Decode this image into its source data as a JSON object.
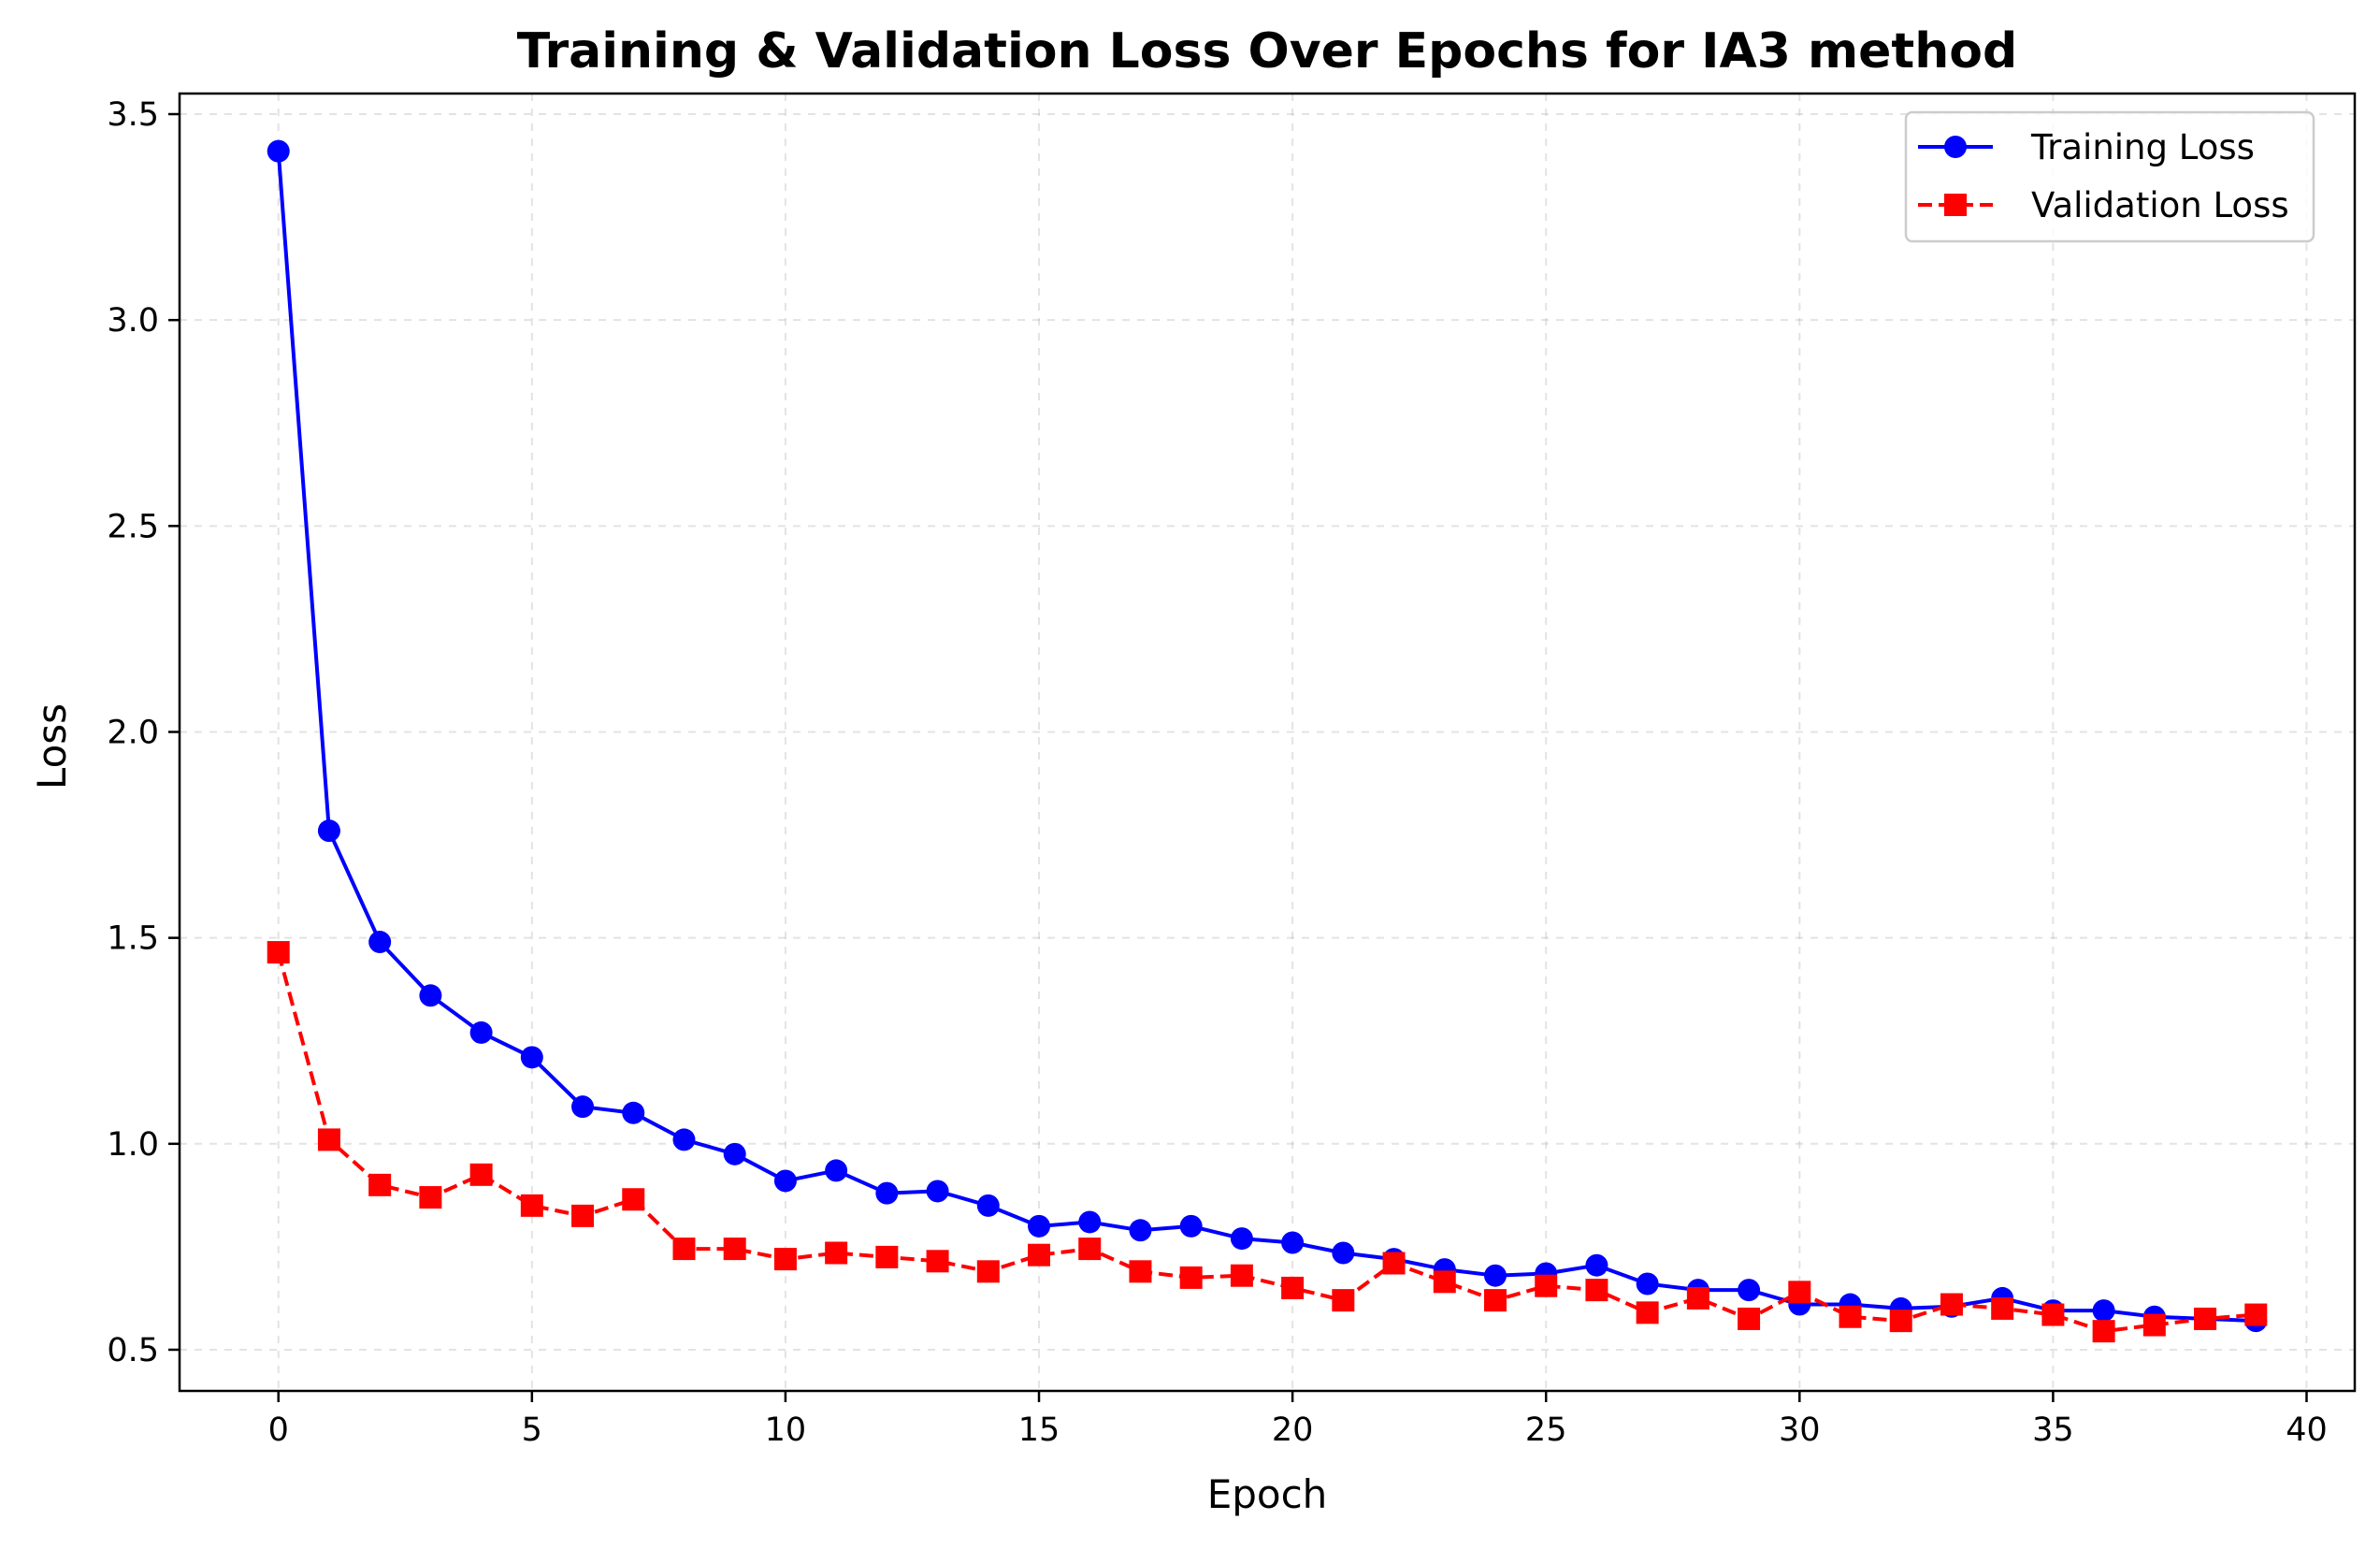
{
  "chart_data": {
    "type": "line",
    "title": "Training & Validation Loss Over Epochs for IA3 method",
    "xlabel": "Epoch",
    "ylabel": "Loss",
    "xlim": [
      -1.95,
      40.95
    ],
    "ylim": [
      0.4,
      3.55
    ],
    "xticks": [
      0,
      5,
      10,
      15,
      20,
      25,
      30,
      35,
      40
    ],
    "xtick_labels": [
      "0",
      "5",
      "10",
      "15",
      "20",
      "25",
      "30",
      "35",
      "40"
    ],
    "yticks": [
      0.5,
      1.0,
      1.5,
      2.0,
      2.5,
      3.0,
      3.5
    ],
    "ytick_labels": [
      "0.5",
      "1.0",
      "1.5",
      "2.0",
      "2.5",
      "3.0",
      "3.5"
    ],
    "grid": true,
    "legend_position": "top-right",
    "x": [
      0,
      1,
      2,
      3,
      4,
      5,
      6,
      7,
      8,
      9,
      10,
      11,
      12,
      13,
      14,
      15,
      16,
      17,
      18,
      19,
      20,
      21,
      22,
      23,
      24,
      25,
      26,
      27,
      28,
      29,
      30,
      31,
      32,
      33,
      34,
      35,
      36,
      37,
      38,
      39
    ],
    "series": [
      {
        "name": "Training Loss",
        "color": "#0000ff",
        "line_style": "solid",
        "marker": "circle",
        "values": [
          3.41,
          1.76,
          1.49,
          1.36,
          1.27,
          1.21,
          1.09,
          1.075,
          1.01,
          0.975,
          0.91,
          0.935,
          0.88,
          0.885,
          0.85,
          0.8,
          0.81,
          0.79,
          0.8,
          0.77,
          0.76,
          0.735,
          0.72,
          0.695,
          0.68,
          0.685,
          0.705,
          0.66,
          0.645,
          0.645,
          0.61,
          0.61,
          0.6,
          0.605,
          0.625,
          0.595,
          0.595,
          0.58,
          0.575,
          0.57
        ]
      },
      {
        "name": "Validation Loss",
        "color": "#ff0000",
        "line_style": "dashed",
        "marker": "square",
        "values": [
          1.465,
          1.01,
          0.9,
          0.87,
          0.925,
          0.85,
          0.825,
          0.865,
          0.745,
          0.745,
          0.72,
          0.735,
          0.725,
          0.715,
          0.69,
          0.73,
          0.745,
          0.69,
          0.675,
          0.68,
          0.65,
          0.62,
          0.71,
          0.665,
          0.62,
          0.655,
          0.645,
          0.59,
          0.625,
          0.575,
          0.64,
          0.58,
          0.57,
          0.61,
          0.6,
          0.585,
          0.545,
          0.56,
          0.575,
          0.585
        ]
      }
    ]
  }
}
